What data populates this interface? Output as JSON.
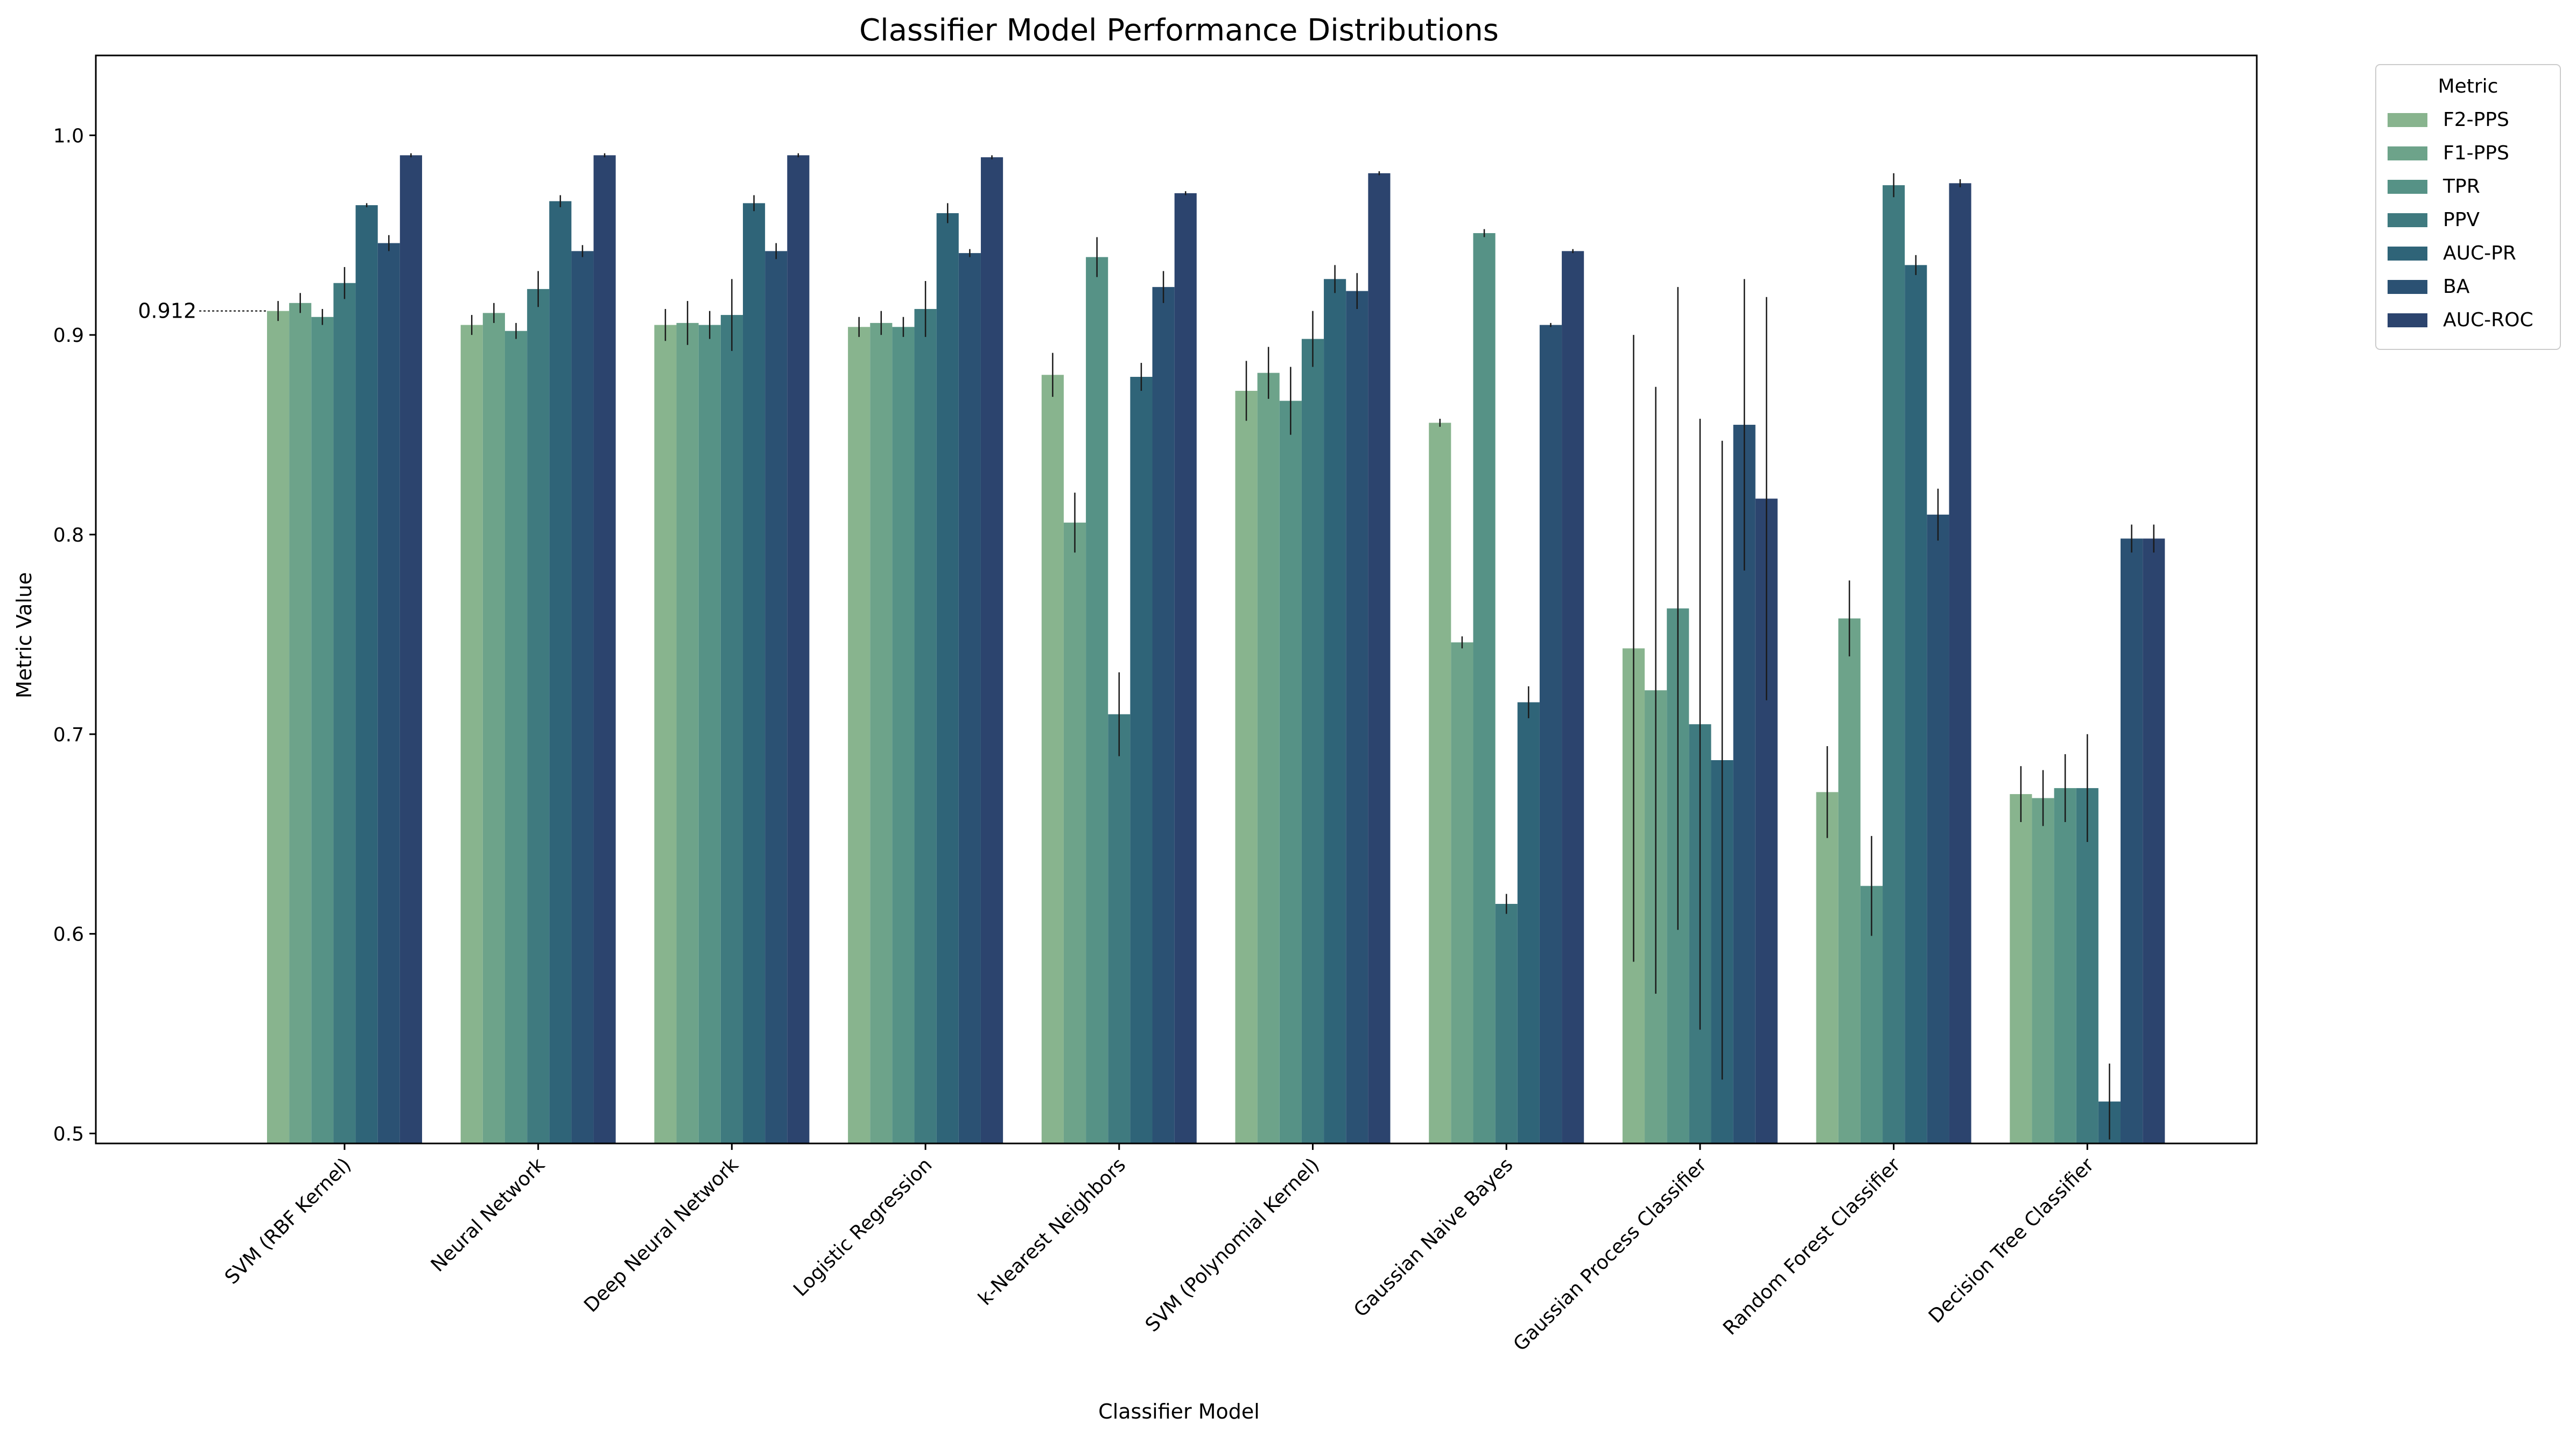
{
  "chart_data": {
    "type": "bar",
    "title": "Classifier Model Performance Distributions",
    "xlabel": "Classifier Model",
    "ylabel": "Metric Value",
    "ylim": [
      0.495,
      1.04
    ],
    "yticks": [
      "0.5",
      "0.6",
      "0.7",
      "0.8",
      "0.9",
      "1.0"
    ],
    "grid": false,
    "legend": {
      "title": "Metric",
      "placement": "outside-top-right"
    },
    "annotation": {
      "text": "0.912",
      "category": "SVM (RBF Kernel)",
      "series": "F2-PPS",
      "value": 0.912
    },
    "categories": [
      "SVM (RBF Kernel)",
      "Neural Network",
      "Deep Neural Network",
      "Logistic Regression",
      "k-Nearest Neighbors",
      "SVM (Polynomial Kernel)",
      "Gaussian Naive Bayes",
      "Gaussian Process Classifier",
      "Random Forest Classifier",
      "Decision Tree Classifier"
    ],
    "series": [
      {
        "name": "F2-PPS",
        "color": "#88b48e",
        "values": [
          0.912,
          0.905,
          0.905,
          0.904,
          0.88,
          0.872,
          0.856,
          0.743,
          0.671,
          0.67
        ],
        "err": [
          0.005,
          0.005,
          0.008,
          0.005,
          0.011,
          0.015,
          0.002,
          0.157,
          0.023,
          0.014
        ]
      },
      {
        "name": "F1-PPS",
        "color": "#6da38a",
        "values": [
          0.916,
          0.911,
          0.906,
          0.906,
          0.806,
          0.881,
          0.746,
          0.722,
          0.758,
          0.668
        ],
        "err": [
          0.005,
          0.005,
          0.011,
          0.006,
          0.015,
          0.013,
          0.003,
          0.152,
          0.019,
          0.014
        ]
      },
      {
        "name": "TPR",
        "color": "#569286",
        "values": [
          0.909,
          0.902,
          0.905,
          0.904,
          0.939,
          0.867,
          0.951,
          0.763,
          0.624,
          0.673
        ],
        "err": [
          0.004,
          0.004,
          0.007,
          0.005,
          0.01,
          0.017,
          0.002,
          0.161,
          0.025,
          0.017
        ]
      },
      {
        "name": "PPV",
        "color": "#3f7a7f",
        "values": [
          0.926,
          0.923,
          0.91,
          0.913,
          0.71,
          0.898,
          0.615,
          0.705,
          0.975,
          0.673
        ],
        "err": [
          0.008,
          0.009,
          0.018,
          0.014,
          0.021,
          0.014,
          0.005,
          0.153,
          0.006,
          0.027
        ]
      },
      {
        "name": "AUC-PR",
        "color": "#2f6478",
        "values": [
          0.965,
          0.967,
          0.966,
          0.961,
          0.879,
          0.928,
          0.716,
          0.687,
          0.935,
          0.516
        ],
        "err": [
          0.001,
          0.003,
          0.004,
          0.005,
          0.007,
          0.007,
          0.008,
          0.16,
          0.005,
          0.019
        ]
      },
      {
        "name": "BA",
        "color": "#2b5173",
        "values": [
          0.946,
          0.942,
          0.942,
          0.941,
          0.924,
          0.922,
          0.905,
          0.855,
          0.81,
          0.798
        ],
        "err": [
          0.004,
          0.003,
          0.004,
          0.002,
          0.008,
          0.009,
          0.001,
          0.073,
          0.013,
          0.007
        ]
      },
      {
        "name": "AUC-ROC",
        "color": "#2c446e",
        "values": [
          0.99,
          0.99,
          0.99,
          0.989,
          0.971,
          0.981,
          0.942,
          0.818,
          0.976,
          0.798
        ],
        "err": [
          0.001,
          0.001,
          0.001,
          0.001,
          0.001,
          0.001,
          0.001,
          0.101,
          0.002,
          0.007
        ]
      }
    ]
  }
}
